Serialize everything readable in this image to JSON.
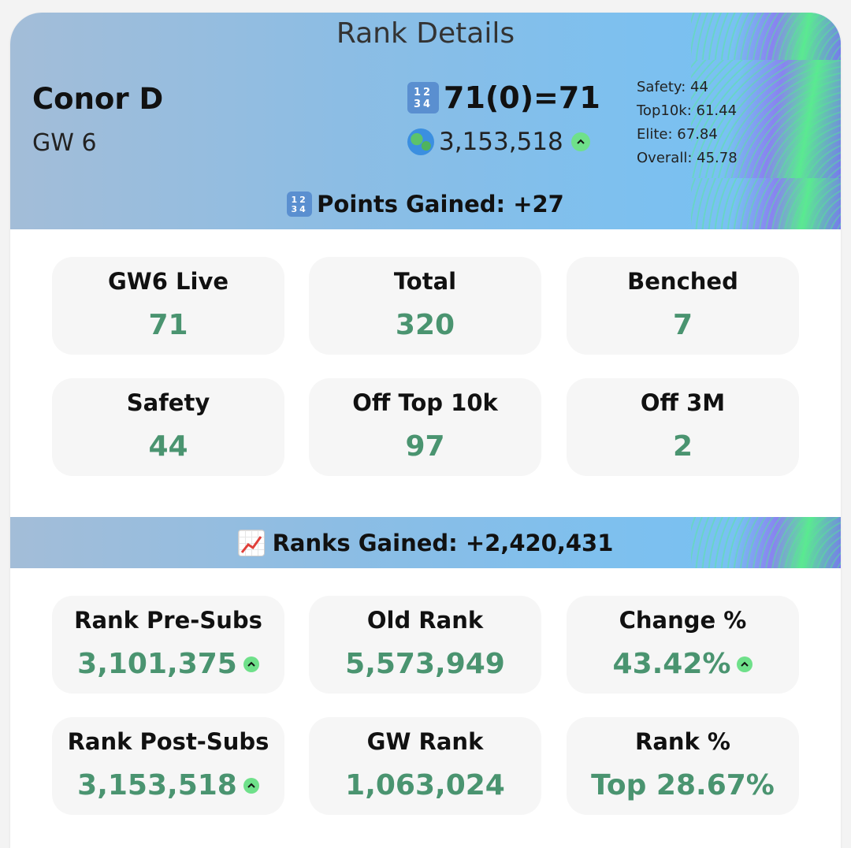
{
  "title": "Rank Details",
  "user": {
    "name": "Conor D",
    "gameweek": "GW 6",
    "score_line": "71(0)=71",
    "overall_rank": "3,153,518",
    "rank_trend_icon": "up-arrow-icon"
  },
  "side_stats": [
    "Safety: 44",
    "Top10k: 61.44",
    "Elite: 67.84",
    "Overall: 45.78"
  ],
  "points_section": {
    "label": "Points Gained: +27",
    "tiles": [
      {
        "label": "GW6 Live",
        "value": "71"
      },
      {
        "label": "Total",
        "value": "320"
      },
      {
        "label": "Benched",
        "value": "7"
      },
      {
        "label": "Safety",
        "value": "44"
      },
      {
        "label": "Off Top 10k",
        "value": "97"
      },
      {
        "label": "Off 3M",
        "value": "2"
      }
    ]
  },
  "ranks_section": {
    "label": "Ranks Gained: +2,420,431",
    "tiles": [
      {
        "label": "Rank Pre-Subs",
        "value": "3,101,375",
        "trend": "up"
      },
      {
        "label": "Old Rank",
        "value": "5,573,949"
      },
      {
        "label": "Change %",
        "value": "43.42%",
        "trend": "up"
      },
      {
        "label": "Rank Post-Subs",
        "value": "3,153,518",
        "trend": "up"
      },
      {
        "label": "GW Rank",
        "value": "1,063,024"
      },
      {
        "label": "Rank %",
        "value": "Top 28.67%"
      }
    ]
  },
  "colors": {
    "value_green": "#4a9470",
    "trend_green": "#6fe08a",
    "tile_bg": "#f6f6f6"
  }
}
